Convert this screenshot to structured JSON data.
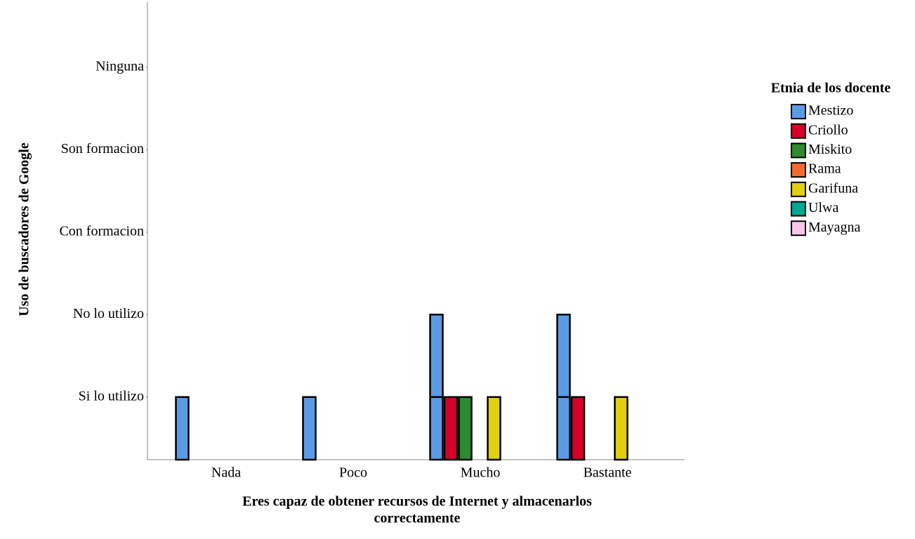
{
  "chart_data": {
    "type": "bar",
    "x_label": [
      "Eres capaz de obtener recursos de Internet y almacenarlos",
      "correctamente"
    ],
    "y_label": "Uso de buscadores de Google",
    "legend_title": "Etnia de los docente",
    "legend_position": "right",
    "categories": [
      "Nada",
      "Poco",
      "Mucho",
      "Bastante"
    ],
    "series": [
      {
        "name": "Mestizo",
        "color": "#5b9be6",
        "values": [
          1,
          1,
          2,
          2
        ]
      },
      {
        "name": "Criollo",
        "color": "#d6002a",
        "values": [
          null,
          null,
          1,
          1
        ]
      },
      {
        "name": "Miskito",
        "color": "#2e8b2e",
        "values": [
          null,
          null,
          1,
          null
        ]
      },
      {
        "name": "Rama",
        "color": "#f26b2e",
        "values": [
          null,
          null,
          null,
          null
        ]
      },
      {
        "name": "Garifuna",
        "color": "#e0d010",
        "values": [
          null,
          null,
          1,
          1
        ]
      },
      {
        "name": "Ulwa",
        "color": "#00a88f",
        "values": [
          null,
          null,
          null,
          null
        ]
      },
      {
        "name": "Mayagna",
        "color": "#f7c6e6",
        "values": [
          null,
          null,
          null,
          null
        ]
      }
    ],
    "ylim": [
      0.24,
      5.79
    ],
    "yticks": [
      {
        "value": 1,
        "label": "Si lo utilizo"
      },
      {
        "value": 2,
        "label": "No lo utilizo"
      },
      {
        "value": 3,
        "label": "Con formacion"
      },
      {
        "value": 4,
        "label": "Son formacion"
      },
      {
        "value": 5,
        "label": "Ninguna"
      }
    ],
    "grid": false
  }
}
